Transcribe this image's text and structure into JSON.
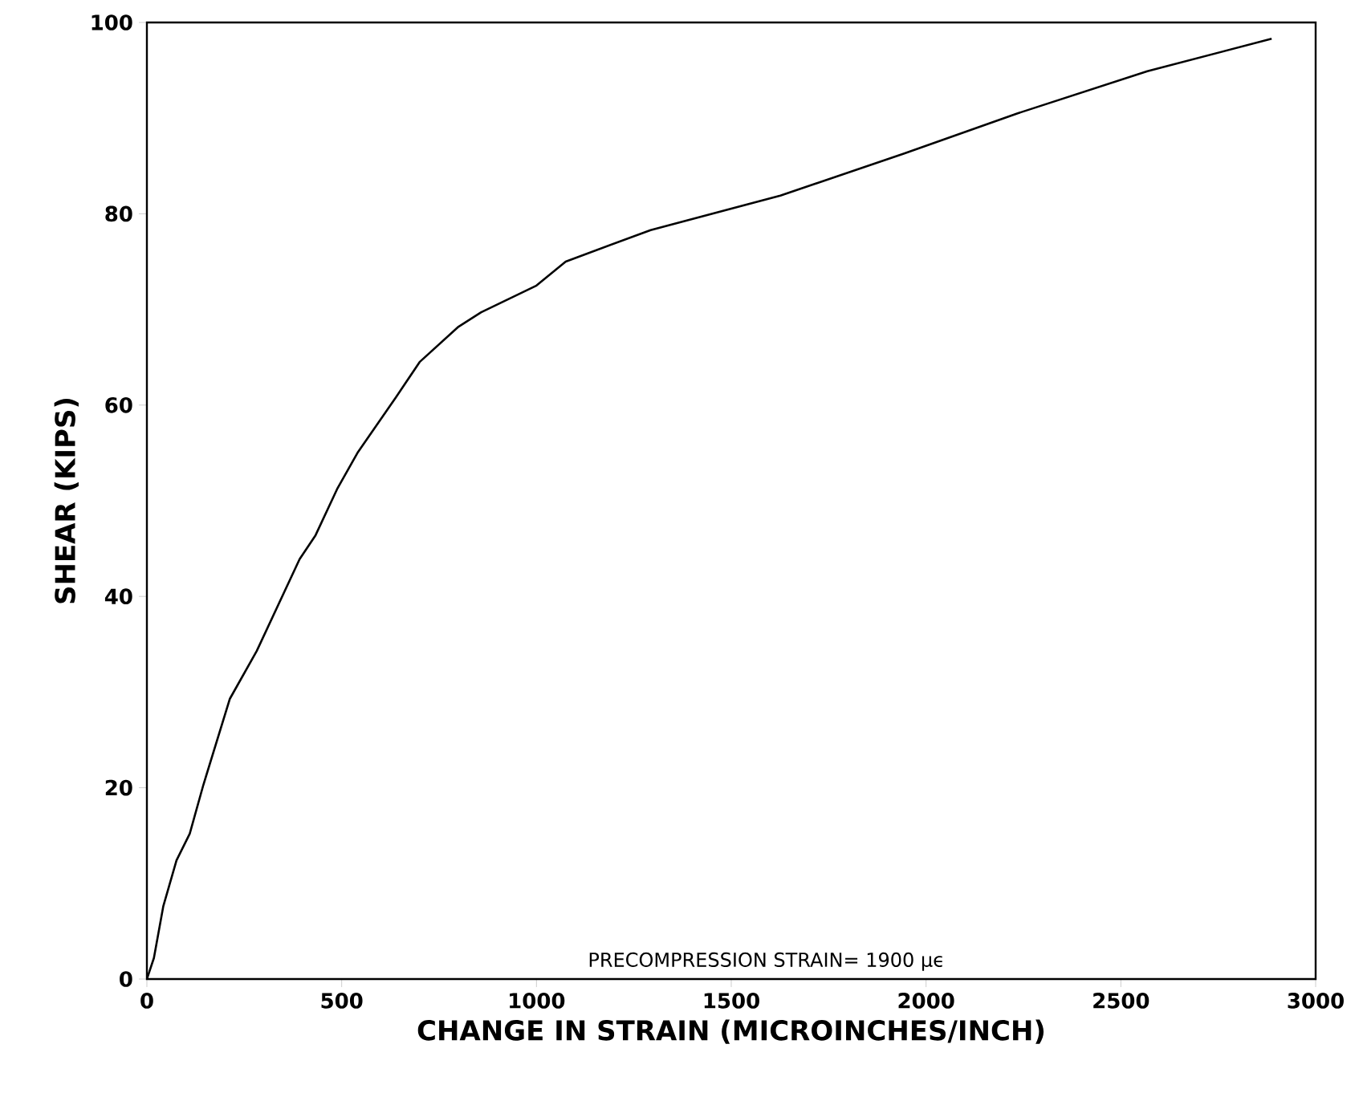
{
  "chart_data": {
    "type": "line",
    "xlabel": "CHANGE IN STRAIN (MICROINCHES/INCH)",
    "ylabel": "SHEAR (KIPS)",
    "annotations": [
      "PRECOMPRESSION  STRAIN= 1900 μϵ"
    ],
    "xlim": [
      0,
      3000
    ],
    "ylim": [
      0,
      100
    ],
    "xticks": [
      0,
      500,
      1000,
      1500,
      2000,
      2500,
      3000
    ],
    "yticks": [
      0,
      20,
      40,
      60,
      80,
      100
    ],
    "marker": "none",
    "line_style": "solid",
    "series": [
      {
        "color": "#000000",
        "x": [
          0,
          18,
          42,
          76,
          110,
          145,
          213,
          282,
          392,
          433,
          488,
          542,
          639,
          700,
          800,
          858,
          1000,
          1075,
          1293,
          1626,
          1944,
          2235,
          2568,
          2887
        ],
        "values": [
          0,
          2.2,
          7.6,
          12.4,
          15.2,
          20.3,
          29.3,
          34.3,
          43.9,
          46.4,
          51.2,
          55.1,
          60.8,
          64.5,
          68.2,
          69.7,
          72.5,
          75.0,
          78.3,
          81.9,
          86.3,
          90.5,
          94.9,
          98.3
        ]
      }
    ]
  }
}
